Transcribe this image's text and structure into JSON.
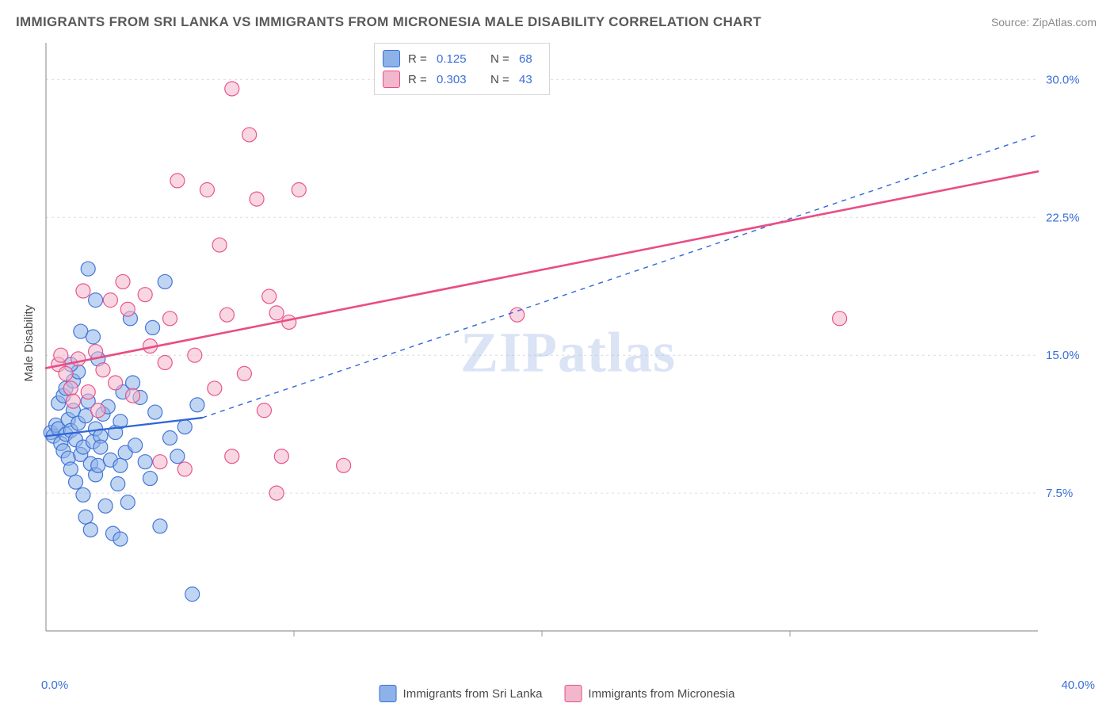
{
  "title": "IMMIGRANTS FROM SRI LANKA VS IMMIGRANTS FROM MICRONESIA MALE DISABILITY CORRELATION CHART",
  "source": "Source: ZipAtlas.com",
  "ylabel": "Male Disability",
  "watermark_a": "ZIP",
  "watermark_b": "atlas",
  "chart": {
    "type": "scatter",
    "background_color": "#ffffff",
    "grid_color": "#dcdcdc",
    "axis_line_color": "#999999",
    "tick_label_color": "#3b6fd8",
    "label_fontsize": 15,
    "title_fontsize": 17,
    "title_color": "#595959",
    "marker_radius": 9,
    "marker_opacity": 0.55,
    "marker_stroke_opacity": 0.95,
    "xlim": [
      0,
      40
    ],
    "ylim": [
      0,
      32
    ],
    "x_ticks": [
      0,
      40
    ],
    "x_tick_labels": [
      "0.0%",
      "40.0%"
    ],
    "y_ticks": [
      7.5,
      15.0,
      22.5,
      30.0
    ],
    "y_tick_labels": [
      "7.5%",
      "15.0%",
      "22.5%",
      "30.0%"
    ],
    "x_minor_grid": [
      10,
      20,
      30
    ],
    "series": [
      {
        "id": "srilanka",
        "label": "Immigrants from Sri Lanka",
        "fill_color": "#8cb2e8",
        "stroke_color": "#3b6fd8",
        "R": "0.125",
        "N": "68",
        "trend": {
          "x1": 0,
          "y1": 10.6,
          "x2": 6.3,
          "y2": 11.6,
          "x2_dash": 40,
          "y2_dash": 27.0,
          "color": "#2f66d8",
          "width": 2.3,
          "dash": "6 6"
        },
        "points": [
          [
            0.2,
            10.8
          ],
          [
            0.3,
            10.6
          ],
          [
            0.4,
            11.2
          ],
          [
            0.5,
            11.0
          ],
          [
            0.5,
            12.4
          ],
          [
            0.6,
            10.2
          ],
          [
            0.7,
            9.8
          ],
          [
            0.7,
            12.8
          ],
          [
            0.8,
            10.7
          ],
          [
            0.8,
            13.2
          ],
          [
            0.9,
            11.5
          ],
          [
            0.9,
            9.4
          ],
          [
            1.0,
            10.9
          ],
          [
            1.0,
            8.8
          ],
          [
            1.1,
            12.0
          ],
          [
            1.1,
            13.6
          ],
          [
            1.2,
            10.4
          ],
          [
            1.2,
            8.1
          ],
          [
            1.3,
            11.3
          ],
          [
            1.3,
            14.1
          ],
          [
            1.4,
            9.6
          ],
          [
            1.4,
            16.3
          ],
          [
            1.5,
            10.0
          ],
          [
            1.5,
            7.4
          ],
          [
            1.6,
            11.7
          ],
          [
            1.6,
            6.2
          ],
          [
            1.7,
            12.5
          ],
          [
            1.7,
            19.7
          ],
          [
            1.8,
            9.1
          ],
          [
            1.8,
            5.5
          ],
          [
            1.9,
            10.3
          ],
          [
            1.9,
            16.0
          ],
          [
            2.0,
            11.0
          ],
          [
            2.0,
            8.5
          ],
          [
            2.1,
            9.0
          ],
          [
            2.1,
            14.8
          ],
          [
            2.2,
            10.6
          ],
          [
            2.3,
            11.8
          ],
          [
            2.4,
            6.8
          ],
          [
            2.5,
            12.2
          ],
          [
            2.6,
            9.3
          ],
          [
            2.7,
            5.3
          ],
          [
            2.8,
            10.8
          ],
          [
            2.9,
            8.0
          ],
          [
            3.0,
            11.4
          ],
          [
            3.1,
            13.0
          ],
          [
            3.2,
            9.7
          ],
          [
            3.3,
            7.0
          ],
          [
            3.4,
            17.0
          ],
          [
            3.6,
            10.1
          ],
          [
            3.8,
            12.7
          ],
          [
            4.0,
            9.2
          ],
          [
            4.2,
            8.3
          ],
          [
            4.4,
            11.9
          ],
          [
            4.6,
            5.7
          ],
          [
            4.8,
            19.0
          ],
          [
            5.0,
            10.5
          ],
          [
            5.3,
            9.5
          ],
          [
            5.6,
            11.1
          ],
          [
            5.9,
            2.0
          ],
          [
            6.1,
            12.3
          ],
          [
            3.0,
            5.0
          ],
          [
            3.5,
            13.5
          ],
          [
            4.3,
            16.5
          ],
          [
            2.0,
            18.0
          ],
          [
            1.0,
            14.5
          ],
          [
            3.0,
            9.0
          ],
          [
            2.2,
            10.0
          ]
        ]
      },
      {
        "id": "micronesia",
        "label": "Immigrants from Micronesia",
        "fill_color": "#f2b7cc",
        "stroke_color": "#e94d86",
        "R": "0.303",
        "N": "43",
        "trend": {
          "x1": 0,
          "y1": 14.3,
          "x2": 40,
          "y2": 25.0,
          "color": "#e94d86",
          "width": 2.6
        },
        "points": [
          [
            0.5,
            14.5
          ],
          [
            0.6,
            15.0
          ],
          [
            0.8,
            14.0
          ],
          [
            1.0,
            13.2
          ],
          [
            1.1,
            12.5
          ],
          [
            1.3,
            14.8
          ],
          [
            1.5,
            18.5
          ],
          [
            1.7,
            13.0
          ],
          [
            2.0,
            15.2
          ],
          [
            2.1,
            12.0
          ],
          [
            2.3,
            14.2
          ],
          [
            2.6,
            18.0
          ],
          [
            2.8,
            13.5
          ],
          [
            3.1,
            19.0
          ],
          [
            3.3,
            17.5
          ],
          [
            3.5,
            12.8
          ],
          [
            4.0,
            18.3
          ],
          [
            4.2,
            15.5
          ],
          [
            4.6,
            9.2
          ],
          [
            4.8,
            14.6
          ],
          [
            5.0,
            17.0
          ],
          [
            5.3,
            24.5
          ],
          [
            5.6,
            8.8
          ],
          [
            6.0,
            15.0
          ],
          [
            6.5,
            24.0
          ],
          [
            6.8,
            13.2
          ],
          [
            7.0,
            21.0
          ],
          [
            7.3,
            17.2
          ],
          [
            7.5,
            29.5
          ],
          [
            8.0,
            14.0
          ],
          [
            8.2,
            27.0
          ],
          [
            8.5,
            23.5
          ],
          [
            8.8,
            12.0
          ],
          [
            9.0,
            18.2
          ],
          [
            9.3,
            7.5
          ],
          [
            9.3,
            17.3
          ],
          [
            9.5,
            9.5
          ],
          [
            9.8,
            16.8
          ],
          [
            10.2,
            24.0
          ],
          [
            12.0,
            9.0
          ],
          [
            19.0,
            17.2
          ],
          [
            32.0,
            17.0
          ],
          [
            7.5,
            9.5
          ]
        ]
      }
    ],
    "bottom_legend": true
  }
}
